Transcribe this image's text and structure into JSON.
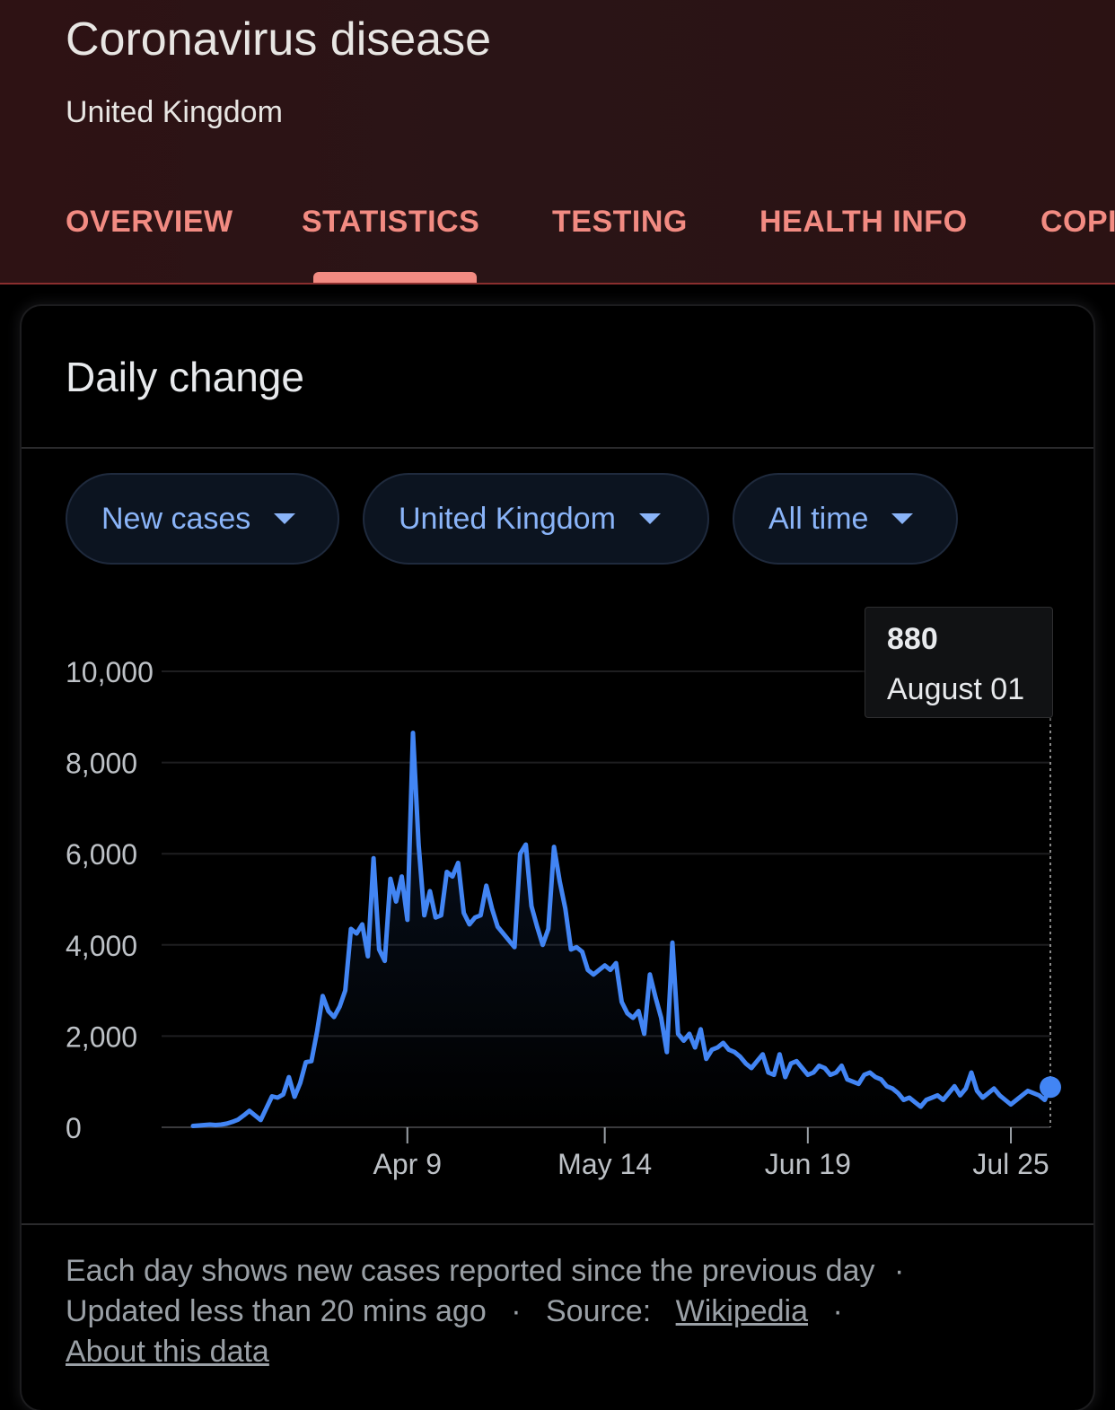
{
  "header": {
    "title": "Coronavirus disease",
    "subtitle": "United Kingdom",
    "tabs": [
      {
        "label": "OVERVIEW"
      },
      {
        "label": "STATISTICS"
      },
      {
        "label": "TESTING"
      },
      {
        "label": "HEALTH INFO"
      },
      {
        "label": "COPING"
      }
    ],
    "active_tab": "STATISTICS"
  },
  "card": {
    "title": "Daily change",
    "filters": {
      "metric": "New cases",
      "region": "United Kingdom",
      "range": "All time"
    },
    "tooltip": {
      "value": "880",
      "date": "August 01"
    },
    "footer": {
      "description": "Each day shows new cases reported since the previous day",
      "separator": "·",
      "updated": "Updated less than 20 mins ago",
      "source_label": "Source:",
      "source_link": "Wikipedia",
      "about_link": "About this data"
    }
  },
  "colors": {
    "accent": "#f28b82",
    "line": "#4285f4",
    "chip_text": "#8ab4f8"
  },
  "chart_data": {
    "type": "line",
    "title": "Daily change",
    "xlabel": "",
    "ylabel": "New cases",
    "ylim": [
      0,
      10000
    ],
    "y_ticks": [
      "0",
      "2,000",
      "4,000",
      "6,000",
      "8,000",
      "10,000"
    ],
    "y_tick_values": [
      0,
      2000,
      4000,
      6000,
      8000,
      10000
    ],
    "x_ticks": [
      "Apr 9",
      "May 14",
      "Jun 19",
      "Jul 25"
    ],
    "x_tick_days": [
      38,
      73,
      109,
      145
    ],
    "x_start": "March 2",
    "series": [
      {
        "name": "New cases",
        "values": [
          30,
          40,
          50,
          60,
          50,
          60,
          80,
          120,
          170,
          260,
          360,
          260,
          160,
          420,
          680,
          650,
          720,
          1100,
          670,
          970,
          1430,
          1450,
          2100,
          2880,
          2550,
          2420,
          2650,
          3000,
          4350,
          4250,
          4450,
          3750,
          5900,
          3900,
          3650,
          5450,
          4950,
          5500,
          4550,
          8650,
          6200,
          4650,
          5180,
          4600,
          4650,
          5600,
          5500,
          5800,
          4700,
          4450,
          4600,
          4650,
          5300,
          4800,
          4400,
          4250,
          4100,
          3950,
          6000,
          6200,
          4850,
          4400,
          4000,
          4350,
          6150,
          5400,
          4800,
          3900,
          3950,
          3850,
          3450,
          3350,
          3450,
          3550,
          3450,
          3600,
          2750,
          2500,
          2400,
          2550,
          2050,
          3350,
          2850,
          2400,
          1650,
          4050,
          2050,
          1900,
          2050,
          1750,
          2150,
          1500,
          1700,
          1750,
          1850,
          1700,
          1650,
          1550,
          1400,
          1300,
          1450,
          1600,
          1200,
          1150,
          1600,
          1100,
          1400,
          1450,
          1300,
          1150,
          1200,
          1350,
          1300,
          1150,
          1200,
          1350,
          1050,
          1000,
          950,
          1150,
          1200,
          1100,
          1050,
          900,
          850,
          750,
          600,
          650,
          550,
          450,
          600,
          650,
          700,
          600,
          750,
          900,
          700,
          850,
          1200,
          800,
          650,
          750,
          850,
          700,
          600,
          500,
          600,
          700,
          800,
          750,
          700,
          600,
          880
        ]
      }
    ]
  }
}
